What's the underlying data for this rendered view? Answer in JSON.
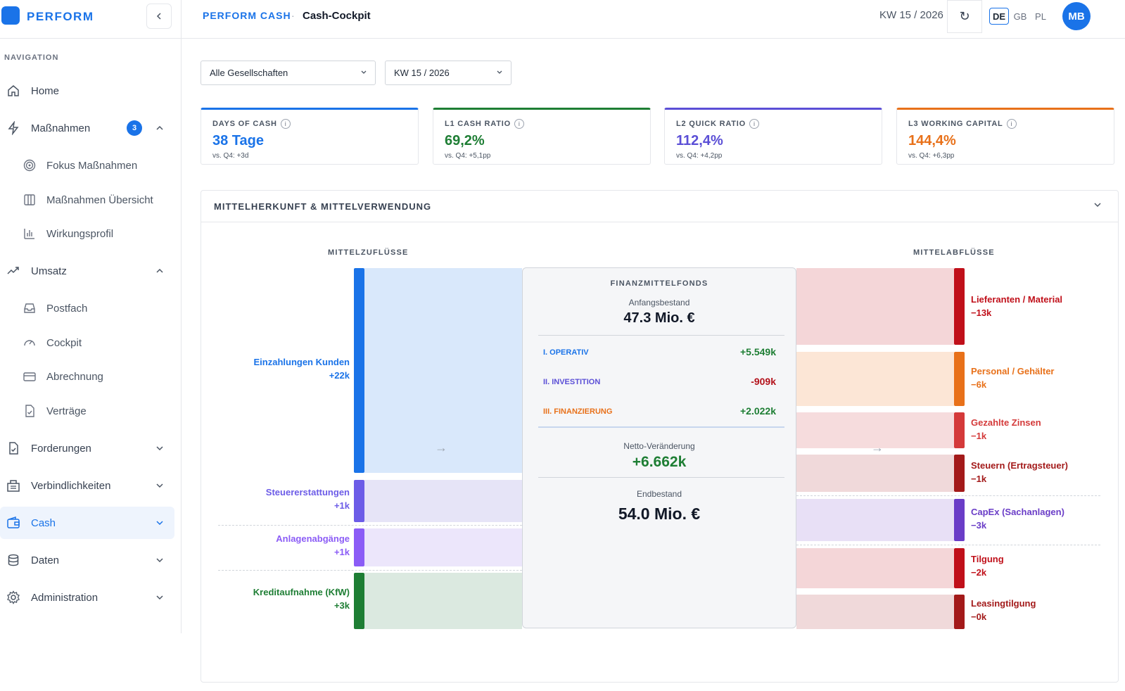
{
  "brand": {
    "name": "PERFORM"
  },
  "sidebar": {
    "heading": "NAVIGATION",
    "items": [
      {
        "label": "Home"
      },
      {
        "label": "Maßnahmen",
        "badge": "3"
      },
      {
        "label": "Fokus Maßnahmen"
      },
      {
        "label": "Maßnahmen Übersicht"
      },
      {
        "label": "Wirkungsprofil"
      },
      {
        "label": "Umsatz"
      },
      {
        "label": "Postfach"
      },
      {
        "label": "Cockpit"
      },
      {
        "label": "Abrechnung"
      },
      {
        "label": "Verträge"
      },
      {
        "label": "Forderungen"
      },
      {
        "label": "Verbindlichkeiten"
      },
      {
        "label": "Cash"
      },
      {
        "label": "Daten"
      },
      {
        "label": "Administration"
      }
    ]
  },
  "header": {
    "app": "PERFORM CASH",
    "separator": "·",
    "page": "Cash-Cockpit",
    "period": "KW 15 / 2026",
    "refresh_icon": "↻",
    "languages": [
      "DE",
      "GB",
      "PL"
    ],
    "active_language": "DE",
    "avatar": "MB"
  },
  "filters": {
    "company": "Alle Gesellschaften",
    "week": "KW 15 / 2026"
  },
  "kpis": [
    {
      "label": "DAYS OF CASH",
      "value": "38 Tage",
      "sub": "vs. Q4: +3d",
      "color": "#1a73e8"
    },
    {
      "label": "L1 CASH RATIO",
      "value": "69,2%",
      "sub": "vs. Q4: +5,1pp",
      "color": "#1e7e34"
    },
    {
      "label": "L2 QUICK RATIO",
      "value": "112,4%",
      "sub": "vs. Q4: +4,2pp",
      "color": "#5b4fd6"
    },
    {
      "label": "L3 WORKING CAPITAL",
      "value": "144,4%",
      "sub": "vs. Q4: +6,3pp",
      "color": "#e8711a"
    }
  ],
  "panel": {
    "title": "MITTELHERKUNFT & MITTELVERWENDUNG",
    "inflow_title": "MITTELZUFLÜSSE",
    "outflow_title": "MITTELABFLÜSSE",
    "arrow": "→"
  },
  "inflows": [
    {
      "label": "Einzahlungen Kunden",
      "value": "+22k",
      "color": "#1a73e8"
    },
    {
      "label": "Steuererstattungen",
      "value": "+1k",
      "color": "#6c5ce7"
    },
    {
      "label": "Anlagenabgänge",
      "value": "+1k",
      "color": "#8b5cf6"
    },
    {
      "label": "Kreditaufnahme (KfW)",
      "value": "+3k",
      "color": "#1e7e34"
    }
  ],
  "outflows": [
    {
      "label": "Lieferanten / Material",
      "value": "−13k",
      "color": "#c0101a"
    },
    {
      "label": "Personal / Gehälter",
      "value": "−6k",
      "color": "#e8711a"
    },
    {
      "label": "Gezahlte Zinsen",
      "value": "−1k",
      "color": "#d43a3a"
    },
    {
      "label": "Steuern (Ertragsteuer)",
      "value": "−1k",
      "color": "#a31a1a"
    },
    {
      "label": "CapEx (Sachanlagen)",
      "value": "−3k",
      "color": "#6a3dc7"
    },
    {
      "label": "Tilgung",
      "value": "−2k",
      "color": "#c0101a"
    },
    {
      "label": "Leasingtilgung",
      "value": "−0k",
      "color": "#a31a1a"
    }
  ],
  "fonds": {
    "title": "FINANZMITTELFONDS",
    "start_label": "Anfangsbestand",
    "start_value": "47.3 Mio. €",
    "rows": [
      {
        "label": "I. OPERATIV",
        "value": "+5.549k",
        "label_color": "#1a73e8",
        "value_color": "#1e7e34"
      },
      {
        "label": "II. INVESTITION",
        "value": "-909k",
        "label_color": "#5b4fd6",
        "value_color": "#b3121b"
      },
      {
        "label": "III. FINANZIERUNG",
        "value": "+2.022k",
        "label_color": "#e8711a",
        "value_color": "#1e7e34"
      }
    ],
    "net_label": "Netto-Veränderung",
    "net_value": "+6.662k",
    "end_label": "Endbestand",
    "end_value": "54.0 Mio. €"
  }
}
